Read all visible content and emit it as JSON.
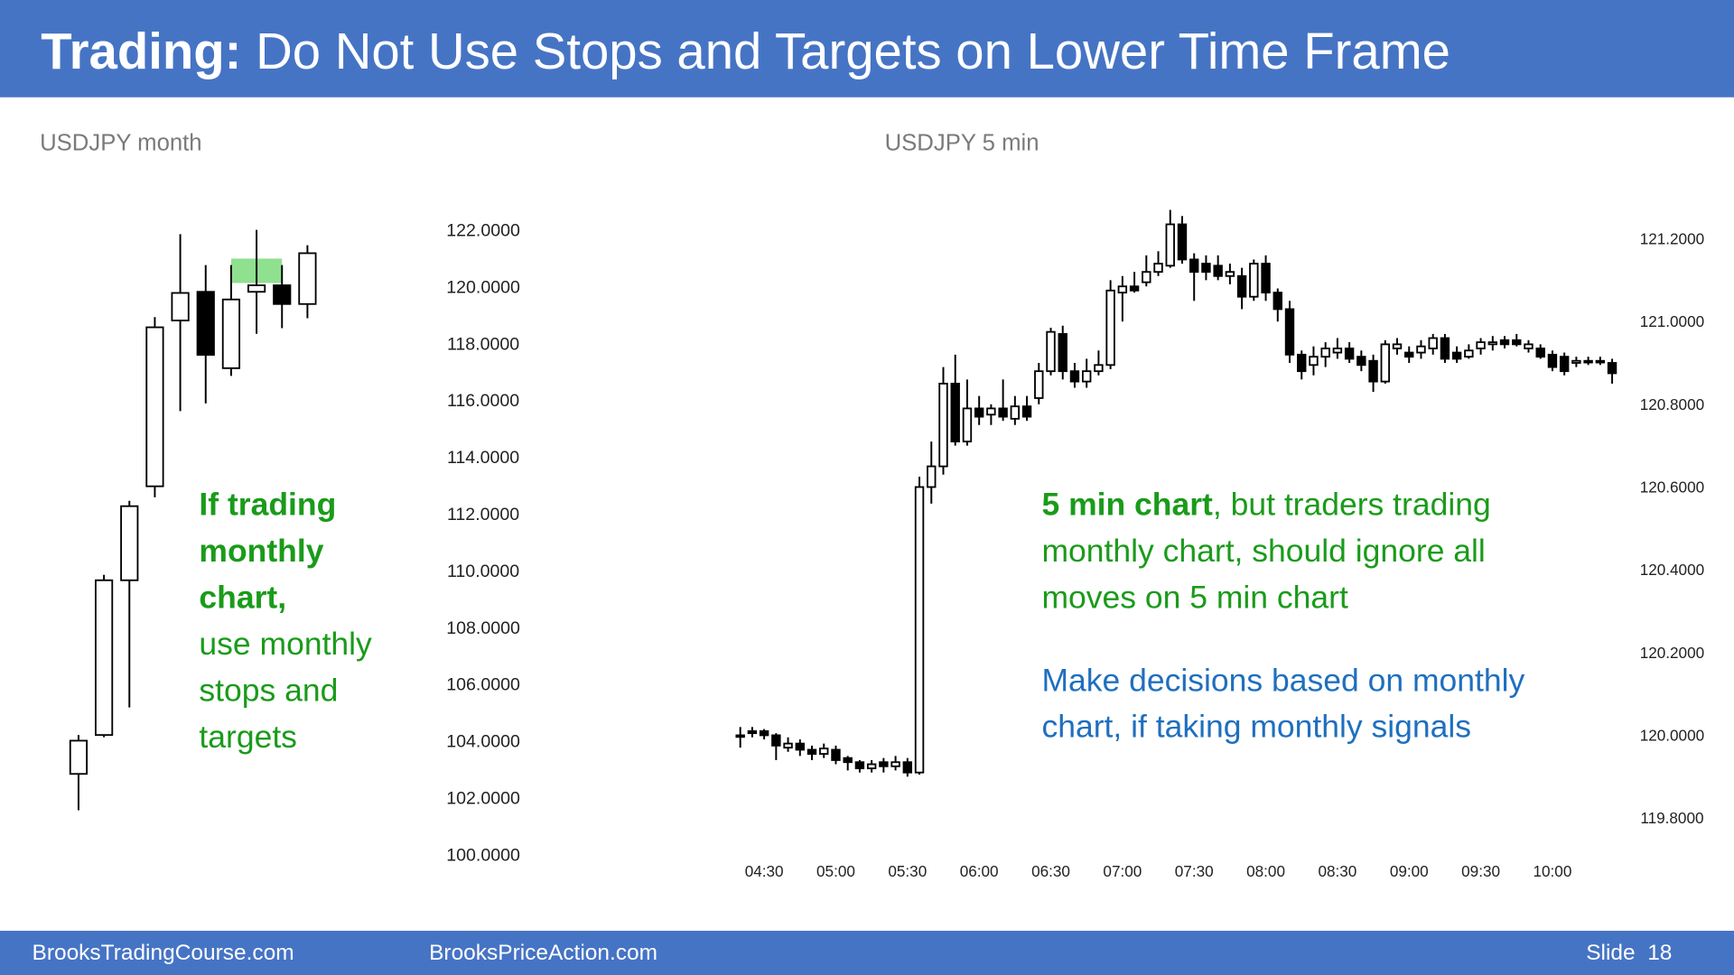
{
  "header": {
    "title": [
      {
        "text": "Trading:",
        "bold": true
      },
      {
        "text": " Do Not Use Stops and Targets on Lower Time Frame"
      }
    ]
  },
  "footer": {
    "left": "BrooksTradingCourse.com",
    "center": "BrooksPriceAction.com",
    "slide": "Slide  18"
  },
  "chart_data": [
    {
      "type": "candlestick",
      "title": "USDJPY month",
      "open": [
        102.84,
        104.21,
        109.66,
        112.97,
        118.81,
        119.82,
        117.13,
        119.82,
        120.05,
        119.39
      ],
      "high": [
        104.21,
        109.85,
        112.46,
        118.93,
        121.85,
        120.76,
        120.76,
        122.0,
        120.76,
        121.46
      ],
      "low": [
        101.56,
        104.13,
        105.18,
        112.58,
        115.62,
        115.89,
        116.86,
        118.34,
        118.54,
        118.89
      ],
      "close": [
        104.01,
        109.66,
        112.27,
        118.57,
        119.78,
        117.6,
        119.55,
        120.05,
        119.39,
        121.18
      ],
      "up_color": "#ffffff",
      "down_color": "#000000",
      "highlight": {
        "from": 120.13,
        "to": 120.99,
        "color": "#8fe08f"
      },
      "ylim": [
        99,
        123
      ],
      "yticks": [
        {
          "value": 100,
          "label": "100.0000"
        },
        {
          "value": 102,
          "label": "102.0000"
        },
        {
          "value": 104,
          "label": "104.0000"
        },
        {
          "value": 106,
          "label": "106.0000"
        },
        {
          "value": 108,
          "label": "108.0000"
        },
        {
          "value": 110,
          "label": "110.0000"
        },
        {
          "value": 112,
          "label": "112.0000"
        },
        {
          "value": 114,
          "label": "114.0000"
        },
        {
          "value": 116,
          "label": "116.0000"
        },
        {
          "value": 118,
          "label": "118.0000"
        },
        {
          "value": 120,
          "label": "120.0000"
        },
        {
          "value": 122,
          "label": "122.0000"
        }
      ],
      "annotations": [
        {
          "color": "#1a9b1a",
          "lines": [
            [
              {
                "text": "If trading",
                "bold": true
              }
            ],
            [
              {
                "text": "monthly",
                "bold": true
              }
            ],
            [
              {
                "text": "chart,",
                "bold": true
              }
            ],
            [
              {
                "text": "use monthly"
              }
            ],
            [
              {
                "text": "stops and"
              }
            ],
            [
              {
                "text": "targets"
              }
            ]
          ]
        }
      ]
    },
    {
      "type": "candlestick",
      "title": "USDJPY 5 min",
      "x": [
        260,
        265,
        270,
        275,
        280,
        285,
        290,
        295,
        300,
        305,
        310,
        315,
        320,
        325,
        330,
        335,
        340,
        345,
        350,
        355,
        360,
        365,
        370,
        375,
        380,
        385,
        390,
        395,
        400,
        405,
        410,
        415,
        420,
        425,
        430,
        435,
        440,
        445,
        450,
        455,
        460,
        465,
        470,
        475,
        480,
        485,
        490,
        495,
        500,
        505,
        510,
        515,
        520,
        525,
        530,
        535,
        540,
        545,
        550,
        555,
        560,
        565,
        570,
        575,
        580,
        585,
        590,
        595,
        600,
        605,
        610,
        615,
        620,
        625
      ],
      "open": [
        120.0,
        120.01,
        120.01,
        120.0,
        119.97,
        119.98,
        119.965,
        119.955,
        119.965,
        119.945,
        119.935,
        119.92,
        119.935,
        119.925,
        119.935,
        119.91,
        120.6,
        120.65,
        120.85,
        120.71,
        120.79,
        120.775,
        120.79,
        120.765,
        120.795,
        120.815,
        120.88,
        120.97,
        120.88,
        120.855,
        120.88,
        120.895,
        121.07,
        121.085,
        121.095,
        121.12,
        121.135,
        121.235,
        121.15,
        121.14,
        121.135,
        121.11,
        121.11,
        121.06,
        121.14,
        121.07,
        121.03,
        120.92,
        120.895,
        120.915,
        120.925,
        120.935,
        120.915,
        120.905,
        120.855,
        120.935,
        120.925,
        120.925,
        120.935,
        120.96,
        120.925,
        120.915,
        120.935,
        120.945,
        120.955,
        120.955,
        120.935,
        120.935,
        120.92,
        120.915,
        120.9,
        120.905,
        120.905,
        120.9
      ],
      "high": [
        120.02,
        120.02,
        120.015,
        120.005,
        119.995,
        119.99,
        119.975,
        119.98,
        119.975,
        119.95,
        119.94,
        119.94,
        119.945,
        119.95,
        119.945,
        120.625,
        120.71,
        120.89,
        120.92,
        120.86,
        120.82,
        120.8,
        120.86,
        120.82,
        120.82,
        120.9,
        120.985,
        120.99,
        120.9,
        120.91,
        120.93,
        121.1,
        121.11,
        121.12,
        121.16,
        121.17,
        121.27,
        121.255,
        121.165,
        121.16,
        121.16,
        121.14,
        121.13,
        121.15,
        121.16,
        121.08,
        121.05,
        120.93,
        120.94,
        120.95,
        120.96,
        120.95,
        120.93,
        120.92,
        120.955,
        120.96,
        120.94,
        120.955,
        120.97,
        120.97,
        120.94,
        120.945,
        120.96,
        120.965,
        120.965,
        120.97,
        120.955,
        120.945,
        120.93,
        120.925,
        120.915,
        120.915,
        120.915,
        120.91
      ],
      "low": [
        119.97,
        119.995,
        119.99,
        119.94,
        119.96,
        119.95,
        119.94,
        119.945,
        119.93,
        119.915,
        119.91,
        119.91,
        119.91,
        119.915,
        119.9,
        119.905,
        120.56,
        120.63,
        120.7,
        120.7,
        120.75,
        120.75,
        120.76,
        120.75,
        120.76,
        120.8,
        120.87,
        120.86,
        120.84,
        120.84,
        120.87,
        120.885,
        121.0,
        121.07,
        121.085,
        121.11,
        121.13,
        121.14,
        121.05,
        121.1,
        121.1,
        121.09,
        121.03,
        121.05,
        121.05,
        121.0,
        120.9,
        120.86,
        120.87,
        120.89,
        120.91,
        120.9,
        120.88,
        120.83,
        120.85,
        120.92,
        120.9,
        120.91,
        120.92,
        120.9,
        120.9,
        120.91,
        120.92,
        120.93,
        120.935,
        120.94,
        120.925,
        120.91,
        120.88,
        120.87,
        120.89,
        120.895,
        120.895,
        120.85
      ],
      "close": [
        120.0,
        120.005,
        120.0,
        119.975,
        119.98,
        119.965,
        119.955,
        119.968,
        119.94,
        119.935,
        119.92,
        119.93,
        119.925,
        119.935,
        119.91,
        120.6,
        120.65,
        120.85,
        120.71,
        120.79,
        120.77,
        120.79,
        120.77,
        120.795,
        120.77,
        120.88,
        120.975,
        120.88,
        120.855,
        120.88,
        120.895,
        121.075,
        121.085,
        121.075,
        121.12,
        121.14,
        121.235,
        121.15,
        121.12,
        121.12,
        121.11,
        121.12,
        121.06,
        121.14,
        121.07,
        121.03,
        120.92,
        120.88,
        120.915,
        120.935,
        120.935,
        120.91,
        120.895,
        120.855,
        120.945,
        120.945,
        120.915,
        120.94,
        120.96,
        120.91,
        120.91,
        120.93,
        120.95,
        120.95,
        120.945,
        120.945,
        120.945,
        120.915,
        120.89,
        120.88,
        120.905,
        120.905,
        120.905,
        120.875
      ],
      "up_color": "#ffffff",
      "down_color": "#000000",
      "xlim": [
        255,
        630
      ],
      "xticks": [
        {
          "value": 270,
          "label": "04:30"
        },
        {
          "value": 300,
          "label": "05:00"
        },
        {
          "value": 330,
          "label": "05:30"
        },
        {
          "value": 360,
          "label": "06:00"
        },
        {
          "value": 390,
          "label": "06:30"
        },
        {
          "value": 420,
          "label": "07:00"
        },
        {
          "value": 450,
          "label": "07:30"
        },
        {
          "value": 480,
          "label": "08:00"
        },
        {
          "value": 510,
          "label": "08:30"
        },
        {
          "value": 540,
          "label": "09:00"
        },
        {
          "value": 570,
          "label": "09:30"
        },
        {
          "value": 600,
          "label": "10:00"
        }
      ],
      "ylim": [
        119.75,
        121.3
      ],
      "yticks": [
        {
          "value": 119.8,
          "label": "119.8000"
        },
        {
          "value": 120.0,
          "label": "120.0000"
        },
        {
          "value": 120.2,
          "label": "120.2000"
        },
        {
          "value": 120.4,
          "label": "120.4000"
        },
        {
          "value": 120.6,
          "label": "120.6000"
        },
        {
          "value": 120.8,
          "label": "120.8000"
        },
        {
          "value": 121.0,
          "label": "121.0000"
        },
        {
          "value": 121.2,
          "label": "121.2000"
        }
      ],
      "annotations": [
        {
          "color": "#1a9b1a",
          "lines": [
            [
              {
                "text": "5 min chart",
                "bold": true
              },
              {
                "text": ", but traders trading"
              }
            ],
            [
              {
                "text": "monthly chart, should ignore all"
              }
            ],
            [
              {
                "text": "moves on 5 min chart"
              }
            ]
          ]
        },
        {
          "color": "#1f6fbf",
          "lines": [
            [
              {
                "text": "Make decisions based on monthly"
              }
            ],
            [
              {
                "text": "chart, if taking monthly signals"
              }
            ]
          ]
        }
      ]
    }
  ]
}
